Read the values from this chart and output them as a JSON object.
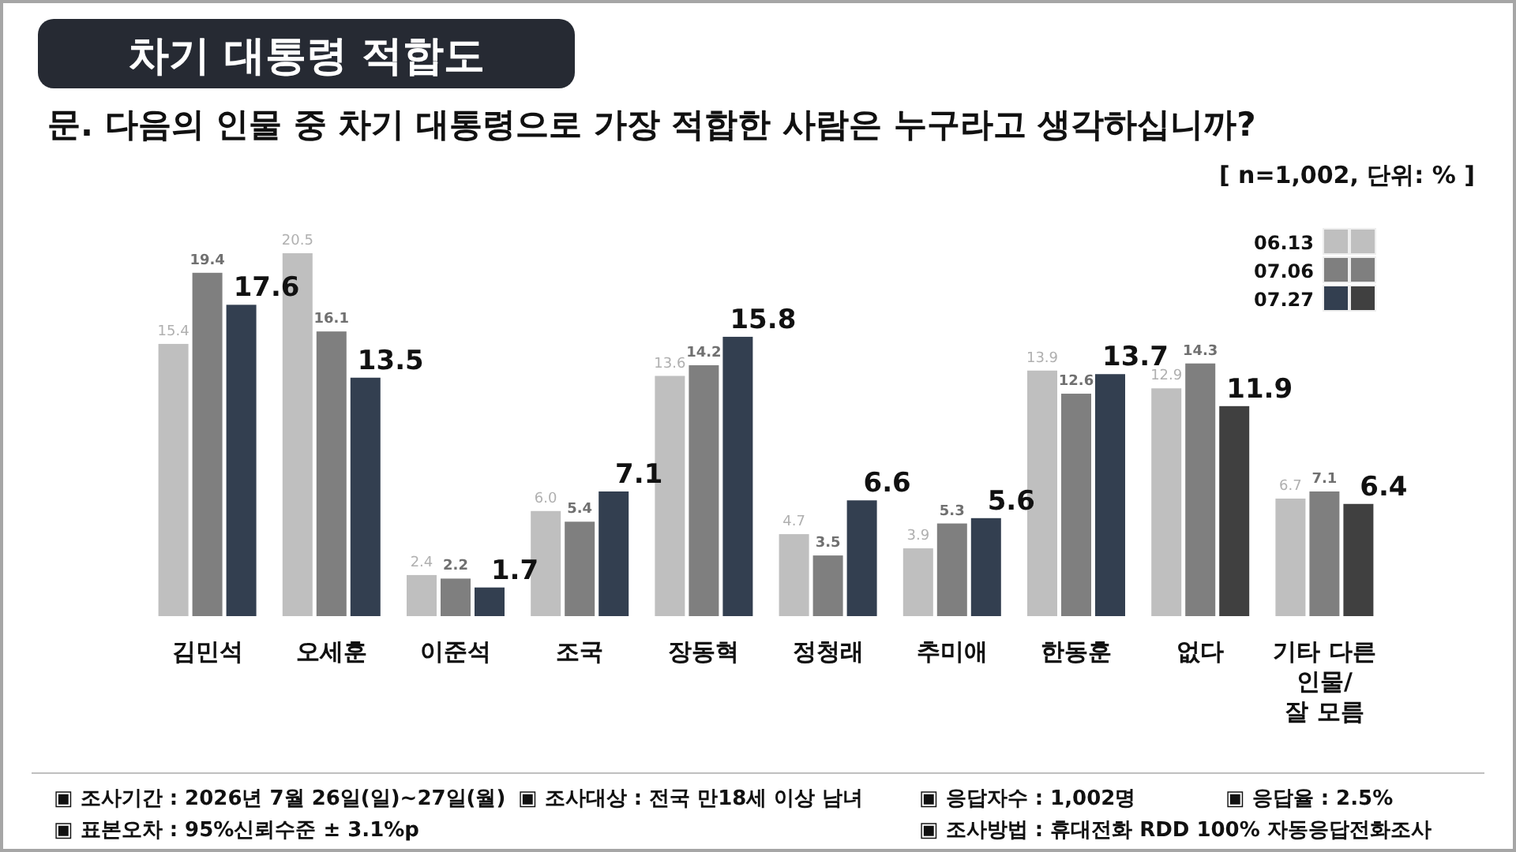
{
  "chart_data": {
    "type": "bar",
    "title": "차기 대통령 적합도",
    "subtitle": "문. 다음의 인물 중 차기 대통령으로 가장 적합한 사람은 누구라고 생각하십니까?",
    "categories": [
      "김민석",
      "오세훈",
      "이준석",
      "조국",
      "장동혁",
      "정청래",
      "추미애",
      "한동훈",
      "없다",
      "기타 다른\n인물/\n잘 모름"
    ],
    "series": [
      {
        "name": "06.13",
        "color": "#bfbfbf",
        "values": [
          15.4,
          20.5,
          2.4,
          6.0,
          13.6,
          4.7,
          3.9,
          13.9,
          12.9,
          6.7
        ],
        "value_labels": [
          "15.4",
          "20.5",
          "2.4",
          "6.0",
          "13.6",
          "4.7",
          "3.9",
          "13.9",
          "12.9",
          "6.7"
        ]
      },
      {
        "name": "07.06",
        "color": "#7f7f7f",
        "values": [
          19.4,
          16.1,
          2.2,
          5.4,
          14.2,
          3.5,
          5.3,
          12.6,
          14.3,
          7.1
        ],
        "value_labels": [
          "19.4",
          "16.1",
          "2.2",
          "5.4",
          "14.2",
          "3.5",
          "5.3",
          "12.6",
          "14.3",
          "7.1"
        ]
      },
      {
        "name": "07.27",
        "color": "#333f50",
        "colors": [
          "#333f50",
          "#333f50",
          "#333f50",
          "#333f50",
          "#333f50",
          "#333f50",
          "#333f50",
          "#333f50",
          "#404040",
          "#404040"
        ],
        "values": [
          17.6,
          13.5,
          1.7,
          7.1,
          15.8,
          6.6,
          5.6,
          13.7,
          11.9,
          6.4
        ],
        "value_labels": [
          "17.6",
          "13.5",
          "1.7",
          "7.1",
          "15.8",
          "6.6",
          "5.6",
          "13.7",
          "11.9",
          "6.4"
        ]
      }
    ],
    "legend": "top right",
    "annotations": [
      "[ n=1,002, 단위: % ]",
      "▣ 조사기간 : 2026년 7월 26일(일)~27일(월)",
      "▣ 조사대상 : 전국 만18세 이상 남녀",
      "▣ 응답자수 : 1,002명",
      "▣ 응답율 : 2.5%",
      "▣ 표본오차 : 95%신뢰수준 ± 3.1%p",
      "▣ 조사방법 : 휴대전화 RDD 100% 자동응답전화조사"
    ]
  }
}
